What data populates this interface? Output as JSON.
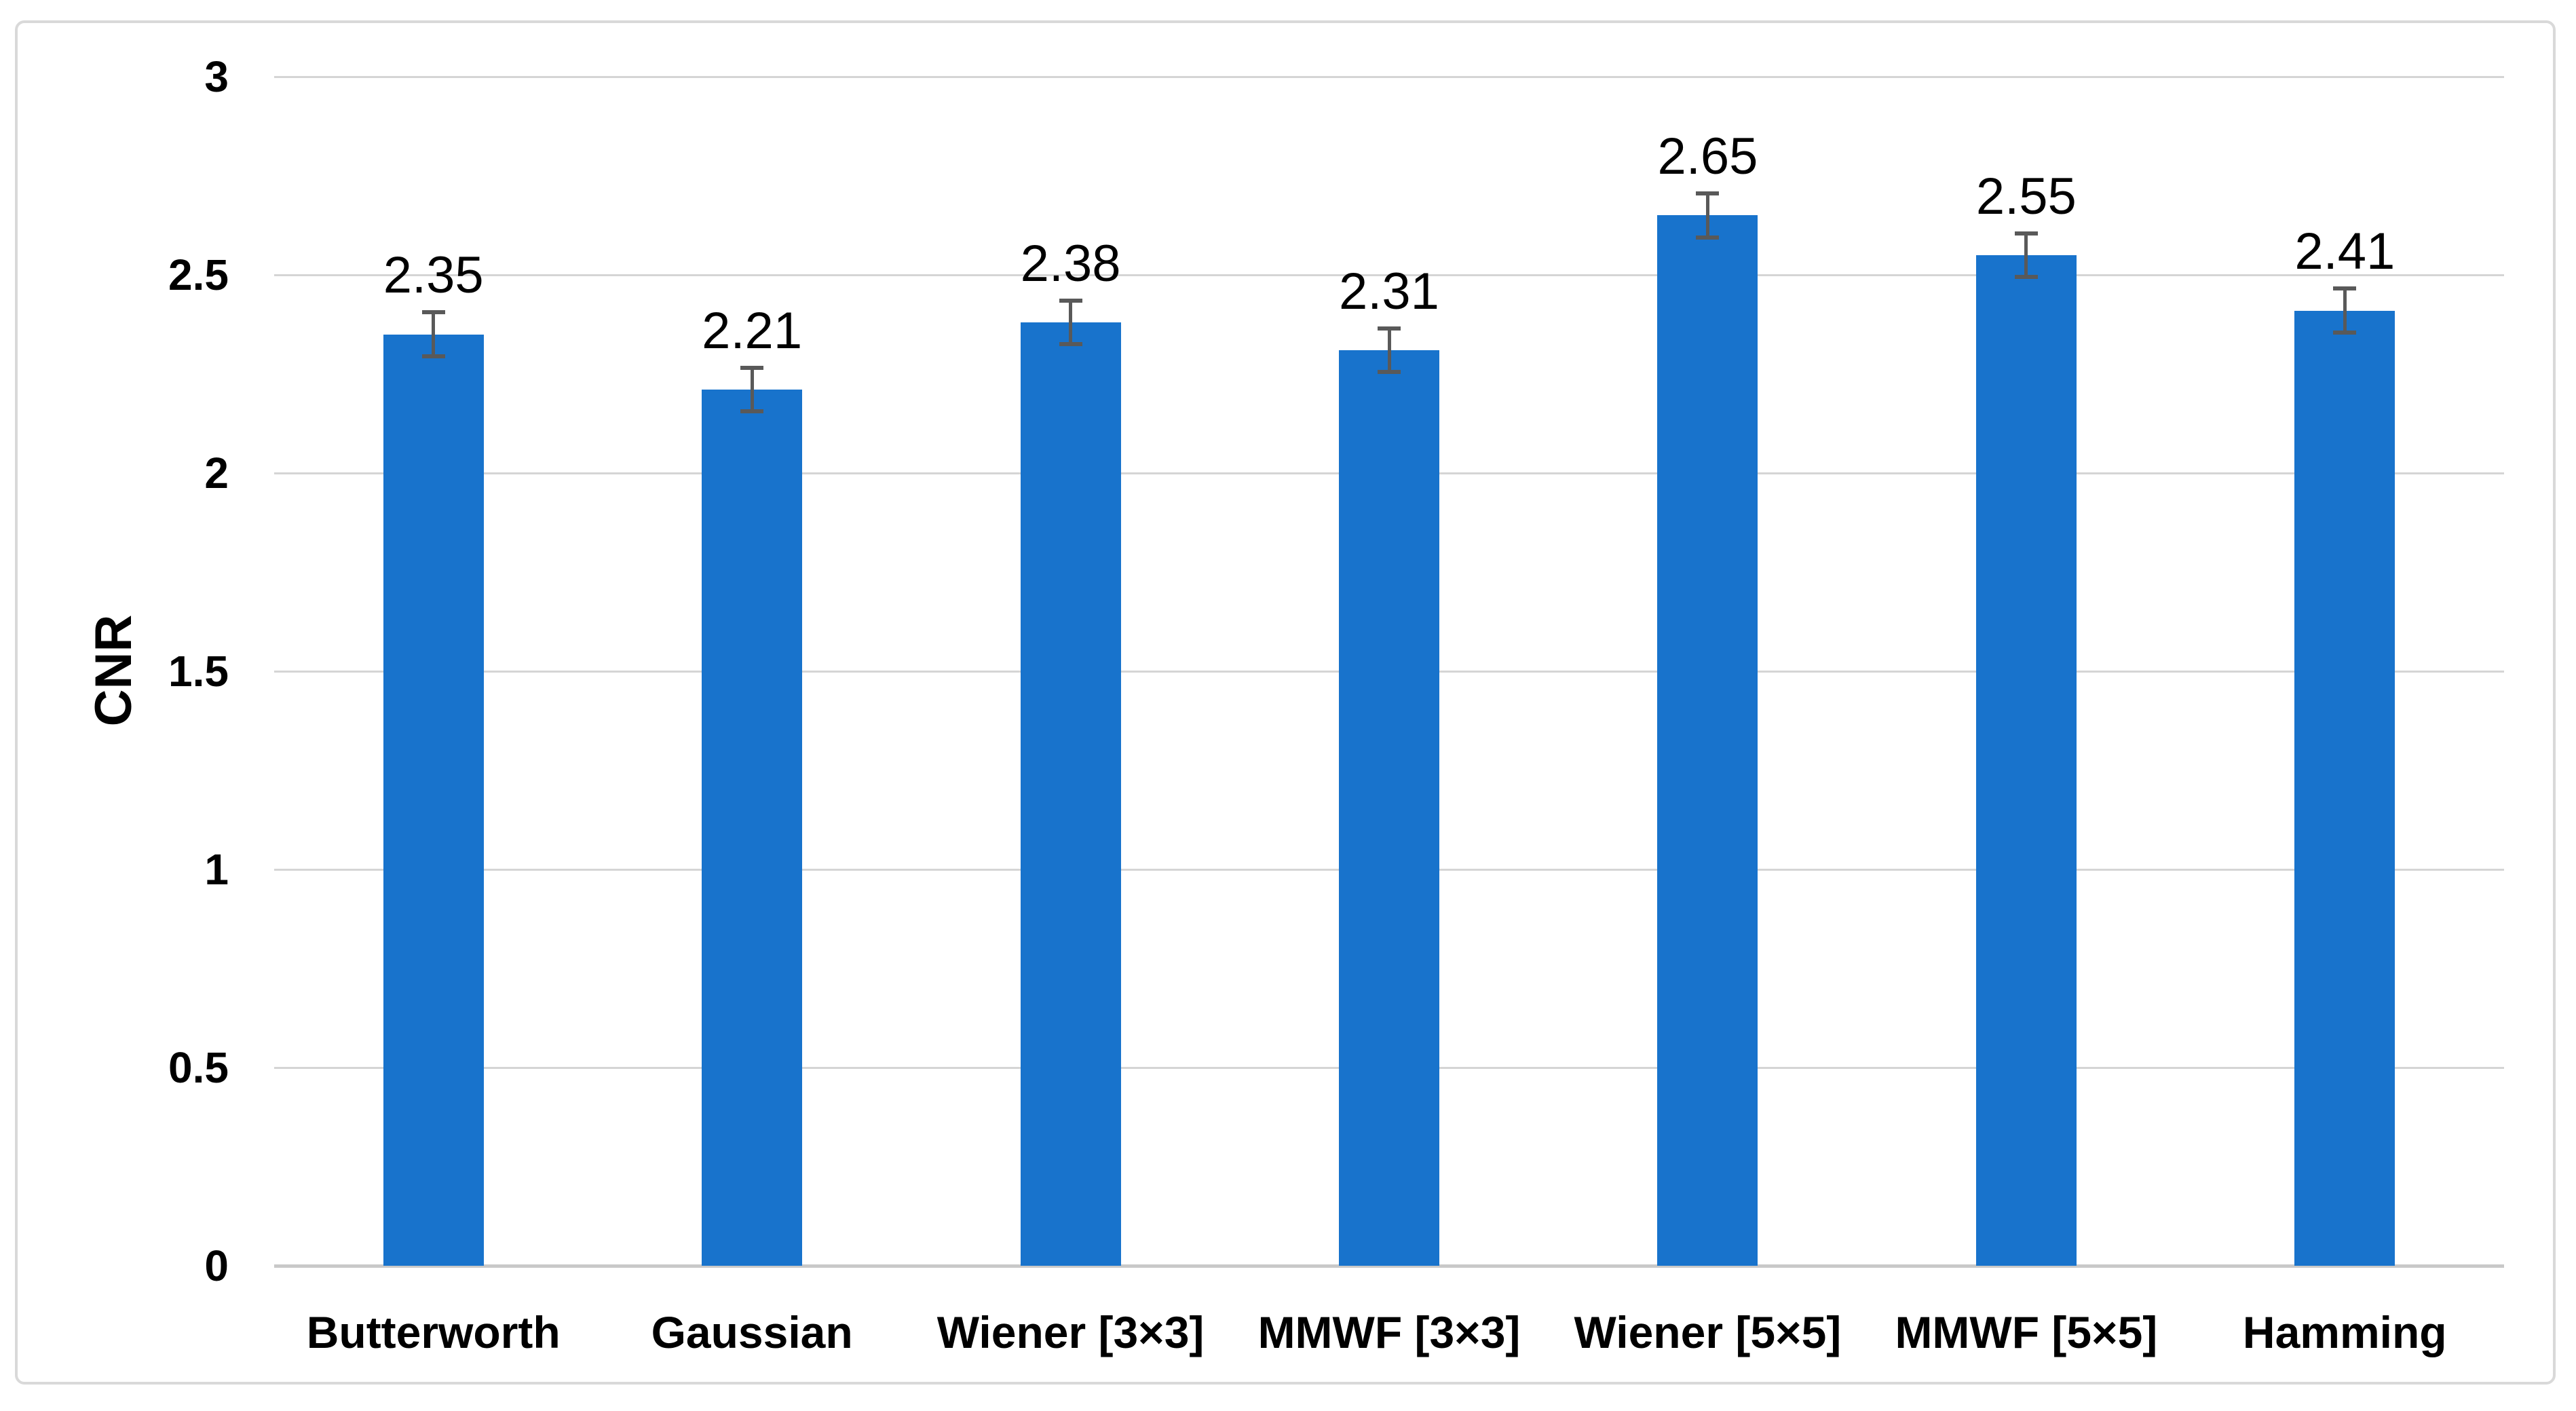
{
  "chart_data": {
    "type": "bar",
    "title": "",
    "xlabel": "",
    "ylabel": "CNR",
    "categories": [
      "Butterworth",
      "Gaussian",
      "Wiener [3×3]",
      "MMWF [3×3]",
      "Wiener [5×5]",
      "MMWF [5×5]",
      "Hamming"
    ],
    "values": [
      2.35,
      2.21,
      2.38,
      2.31,
      2.65,
      2.55,
      2.41
    ],
    "errors": [
      0.055,
      0.055,
      0.055,
      0.055,
      0.055,
      0.055,
      0.055
    ],
    "data_labels": [
      "2.35",
      "2.21",
      "2.38",
      "2.31",
      "2.65",
      "2.55",
      "2.41"
    ],
    "yticks": [
      "0",
      "0.5",
      "1",
      "1.5",
      "2",
      "2.5",
      "3"
    ],
    "ylim": [
      0,
      3
    ],
    "ytick_step": 0.5,
    "grid": "horizontal",
    "legend_position": "none",
    "colors": {
      "bar_fill": "#1873CC",
      "error_bar": "#595959",
      "gridline": "#D5D5D5",
      "axis_line": "#C9C9C9",
      "frame_border": "#D9D9D9",
      "text": "#000000",
      "background": "#FFFFFF"
    }
  }
}
